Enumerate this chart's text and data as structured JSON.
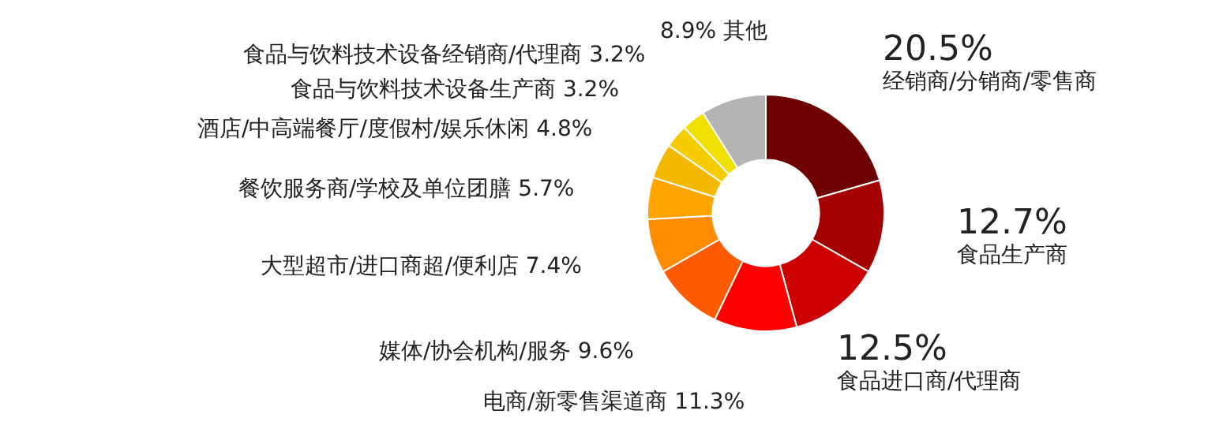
{
  "chart_data": {
    "type": "donut",
    "categories": [
      "经销商/分销商/零售商",
      "食品生产商",
      "食品进口商/代理商",
      "电商/新零售渠道商",
      "媒体/协会机构/服务",
      "大型超市/进口商超/便利店",
      "餐饮服务商/学校及单位团膳",
      "酒店/中高端餐厅/度假村/娱乐休闲",
      "食品与饮料技术设备生产商",
      "食品与饮料技术设备经销商/代理商",
      "其他"
    ],
    "values": [
      20.5,
      12.7,
      12.5,
      11.3,
      9.6,
      7.4,
      5.7,
      4.8,
      3.2,
      3.2,
      8.9
    ],
    "colors": [
      "#6e0000",
      "#a50000",
      "#cc0000",
      "#ff0000",
      "#ff5a00",
      "#ff8c00",
      "#ffa500",
      "#f5b800",
      "#f5cc00",
      "#f0e000",
      "#b4b4b4"
    ],
    "value_labels": [
      "20.5%",
      "12.7%",
      "12.5%",
      "11.3%",
      "9.6%",
      "7.4%",
      "5.7%",
      "4.8%",
      "3.2%",
      "3.2%",
      "8.9%"
    ],
    "legend": false
  }
}
